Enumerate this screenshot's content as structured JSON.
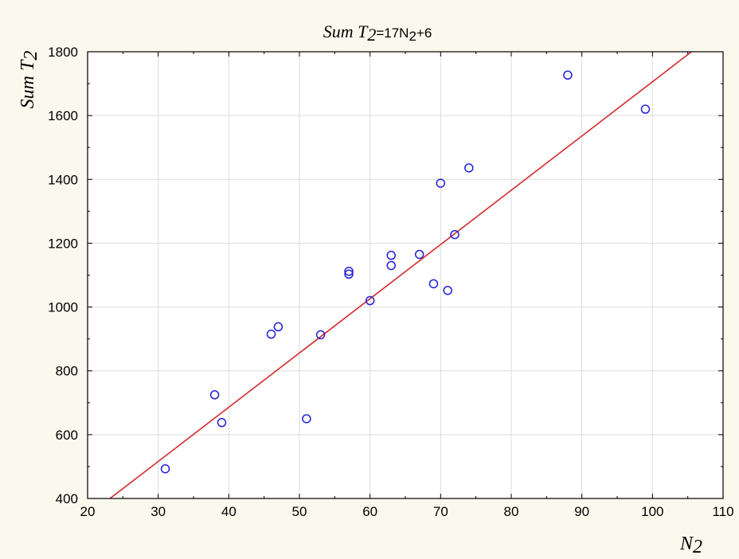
{
  "chart_data": {
    "type": "scatter",
    "title": {
      "main": "Sum T",
      "main_sub": "2",
      "eq_prefix": "=17N",
      "eq_sub": "2",
      "eq_suffix": "+6"
    },
    "xlabel": {
      "text": "N",
      "sub": "2"
    },
    "ylabel": {
      "text": "Sum T",
      "sub": "2"
    },
    "xlim": [
      20,
      110
    ],
    "ylim": [
      400,
      1800
    ],
    "xticks": [
      20,
      30,
      40,
      50,
      60,
      70,
      80,
      90,
      100,
      110
    ],
    "yticks": [
      400,
      600,
      800,
      1000,
      1200,
      1400,
      1600,
      1800
    ],
    "grid": true,
    "points": [
      {
        "x": 31,
        "y": 493
      },
      {
        "x": 38,
        "y": 725
      },
      {
        "x": 39,
        "y": 638
      },
      {
        "x": 46,
        "y": 915
      },
      {
        "x": 47,
        "y": 938
      },
      {
        "x": 51,
        "y": 650
      },
      {
        "x": 53,
        "y": 913
      },
      {
        "x": 57,
        "y": 1112
      },
      {
        "x": 57,
        "y": 1103
      },
      {
        "x": 60,
        "y": 1020
      },
      {
        "x": 63,
        "y": 1162
      },
      {
        "x": 63,
        "y": 1130
      },
      {
        "x": 67,
        "y": 1165
      },
      {
        "x": 69,
        "y": 1073
      },
      {
        "x": 70,
        "y": 1388
      },
      {
        "x": 71,
        "y": 1052
      },
      {
        "x": 72,
        "y": 1227
      },
      {
        "x": 74,
        "y": 1436
      },
      {
        "x": 88,
        "y": 1727
      },
      {
        "x": 99,
        "y": 1620
      }
    ],
    "fit_line": {
      "slope": 17,
      "intercept": 6
    },
    "colors": {
      "points": "#1f1fd6",
      "line": "#d42a2a",
      "grid": "#dcdcdc",
      "background": "#fbf8ee",
      "plot_background": "#ffffff"
    }
  }
}
